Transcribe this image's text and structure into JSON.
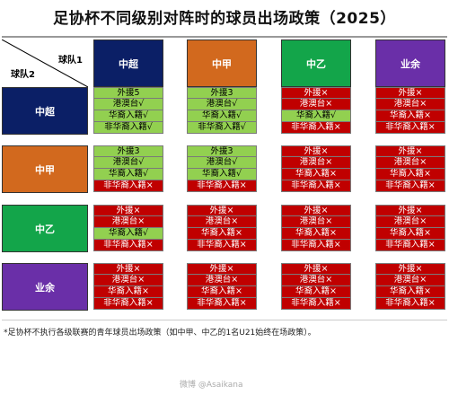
{
  "title": "足协杯不同级别对阵时的球员出场政策（2025）",
  "corner": {
    "team1": "球队1",
    "team2": "球队2"
  },
  "columns": [
    {
      "label": "中超",
      "color": "#0b1f66"
    },
    {
      "label": "中甲",
      "color": "#d2691e"
    },
    {
      "label": "中乙",
      "color": "#13a54a"
    },
    {
      "label": "业余",
      "color": "#6a2fa8"
    }
  ],
  "rows": [
    {
      "label": "中超",
      "color": "#0b1f66"
    },
    {
      "label": "中甲",
      "color": "#d2691e"
    },
    {
      "label": "中乙",
      "color": "#13a54a"
    },
    {
      "label": "业余",
      "color": "#6a2fa8"
    }
  ],
  "matrix": [
    [
      [
        {
          "text": "外援5",
          "ok": true
        },
        {
          "text": "港澳台√",
          "ok": true
        },
        {
          "text": "华裔入籍√",
          "ok": true
        },
        {
          "text": "非华裔入籍√",
          "ok": true
        }
      ],
      [
        {
          "text": "外援3",
          "ok": true
        },
        {
          "text": "港澳台√",
          "ok": true
        },
        {
          "text": "华裔入籍√",
          "ok": true
        },
        {
          "text": "非华裔入籍√",
          "ok": true
        }
      ],
      [
        {
          "text": "外援×",
          "ok": false
        },
        {
          "text": "港澳台×",
          "ok": false
        },
        {
          "text": "华裔入籍√",
          "ok": true
        },
        {
          "text": "非华裔入籍×",
          "ok": false
        }
      ],
      [
        {
          "text": "外援×",
          "ok": false
        },
        {
          "text": "港澳台×",
          "ok": false
        },
        {
          "text": "华裔入籍×",
          "ok": false
        },
        {
          "text": "非华裔入籍×",
          "ok": false
        }
      ]
    ],
    [
      [
        {
          "text": "外援3",
          "ok": true
        },
        {
          "text": "港澳台√",
          "ok": true
        },
        {
          "text": "华裔入籍√",
          "ok": true
        },
        {
          "text": "非华裔入籍×",
          "ok": false
        }
      ],
      [
        {
          "text": "外援3",
          "ok": true
        },
        {
          "text": "港澳台√",
          "ok": true
        },
        {
          "text": "华裔入籍√",
          "ok": true
        },
        {
          "text": "非华裔入籍×",
          "ok": false
        }
      ],
      [
        {
          "text": "外援×",
          "ok": false
        },
        {
          "text": "港澳台×",
          "ok": false
        },
        {
          "text": "华裔入籍×",
          "ok": false
        },
        {
          "text": "非华裔入籍×",
          "ok": false
        }
      ],
      [
        {
          "text": "外援×",
          "ok": false
        },
        {
          "text": "港澳台×",
          "ok": false
        },
        {
          "text": "华裔入籍×",
          "ok": false
        },
        {
          "text": "非华裔入籍×",
          "ok": false
        }
      ]
    ],
    [
      [
        {
          "text": "外援×",
          "ok": false
        },
        {
          "text": "港澳台×",
          "ok": false
        },
        {
          "text": "华裔入籍√",
          "ok": true
        },
        {
          "text": "非华裔入籍×",
          "ok": false
        }
      ],
      [
        {
          "text": "外援×",
          "ok": false
        },
        {
          "text": "港澳台×",
          "ok": false
        },
        {
          "text": "华裔入籍×",
          "ok": false
        },
        {
          "text": "非华裔入籍×",
          "ok": false
        }
      ],
      [
        {
          "text": "外援×",
          "ok": false
        },
        {
          "text": "港澳台×",
          "ok": false
        },
        {
          "text": "华裔入籍×",
          "ok": false
        },
        {
          "text": "非华裔入籍×",
          "ok": false
        }
      ],
      [
        {
          "text": "外援×",
          "ok": false
        },
        {
          "text": "港澳台×",
          "ok": false
        },
        {
          "text": "华裔入籍×",
          "ok": false
        },
        {
          "text": "非华裔入籍×",
          "ok": false
        }
      ]
    ],
    [
      [
        {
          "text": "外援×",
          "ok": false
        },
        {
          "text": "港澳台×",
          "ok": false
        },
        {
          "text": "华裔入籍×",
          "ok": false
        },
        {
          "text": "非华裔入籍×",
          "ok": false
        }
      ],
      [
        {
          "text": "外援×",
          "ok": false
        },
        {
          "text": "港澳台×",
          "ok": false
        },
        {
          "text": "华裔入籍×",
          "ok": false
        },
        {
          "text": "非华裔入籍×",
          "ok": false
        }
      ],
      [
        {
          "text": "外援×",
          "ok": false
        },
        {
          "text": "港澳台×",
          "ok": false
        },
        {
          "text": "华裔入籍×",
          "ok": false
        },
        {
          "text": "非华裔入籍×",
          "ok": false
        }
      ],
      [
        {
          "text": "外援×",
          "ok": false
        },
        {
          "text": "港澳台×",
          "ok": false
        },
        {
          "text": "华裔入籍×",
          "ok": false
        },
        {
          "text": "非华裔入籍×",
          "ok": false
        }
      ]
    ]
  ],
  "footnote": "*足协杯不执行各级联赛的青年球员出场政策（如中甲、中乙的1名U21始终在场政策）。",
  "watermark": "微博 @Asaikana",
  "colors": {
    "allowed": "#92d050",
    "forbidden": "#c00000"
  }
}
